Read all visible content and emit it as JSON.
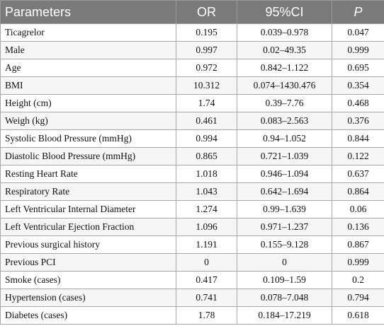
{
  "table": {
    "header": [
      "Parameters",
      "OR",
      "95%CI",
      "P"
    ],
    "rows": [
      [
        "Ticagrelor",
        "0.195",
        "0.039–0.978",
        "0.047"
      ],
      [
        "Male",
        "0.997",
        "0.02–49.35",
        "0.999"
      ],
      [
        "Age",
        "0.972",
        "0.842–1.122",
        "0.695"
      ],
      [
        "BMI",
        "10.312",
        "0.074–1430.476",
        "0.354"
      ],
      [
        "Height (cm)",
        "1.74",
        "0.39–7.76",
        "0.468"
      ],
      [
        "Weigh (kg)",
        "0.461",
        "0.083–2.563",
        "0.376"
      ],
      [
        "Systolic Blood Pressure (mmHg)",
        "0.994",
        "0.94–1.052",
        "0.844"
      ],
      [
        "Diastolic Blood Pressure (mmHg)",
        "0.865",
        "0.721–1.039",
        "0.122"
      ],
      [
        "Resting Heart Rate",
        "1.018",
        "0.946–1.094",
        "0.637"
      ],
      [
        "Respiratory Rate",
        "1.043",
        "0.642–1.694",
        "0.864"
      ],
      [
        "Left Ventricular Internal Diameter",
        "1.274",
        "0.99–1.639",
        "0.06"
      ],
      [
        "Left Ventricular Ejection Fraction",
        "1.096",
        "0.971–1.237",
        "0.136"
      ],
      [
        "Previous surgical history",
        "1.191",
        "0.155–9.128",
        "0.867"
      ],
      [
        "Previous PCI",
        "0",
        "0",
        "0.999"
      ],
      [
        "Smoke (cases)",
        "0.417",
        "0.109–1.59",
        "0.2"
      ],
      [
        "Hypertension (cases)",
        "0.741",
        "0.078–7.048",
        "0.794"
      ],
      [
        "Diabetes (cases)",
        "1.78",
        "0.184–17.219",
        "0.618"
      ]
    ]
  }
}
